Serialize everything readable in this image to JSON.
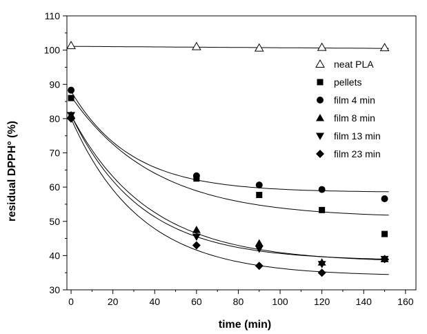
{
  "chart_data": {
    "type": "scatter",
    "title": "",
    "xlabel": "time (min)",
    "ylabel": "residual DPPH° (%)",
    "xlim": [
      -2,
      165
    ],
    "ylim": [
      30,
      110
    ],
    "xticks": [
      0,
      20,
      40,
      60,
      80,
      100,
      120,
      140,
      160
    ],
    "yticks": [
      30,
      40,
      50,
      60,
      70,
      80,
      90,
      100,
      110
    ],
    "grid": false,
    "legend_position": "top-right",
    "series": [
      {
        "name": "neat PLA",
        "marker": "open-triangle",
        "x": [
          0,
          60,
          90,
          120,
          150
        ],
        "y": [
          101.3,
          101.0,
          100.6,
          100.8,
          100.7
        ]
      },
      {
        "name": "pellets",
        "marker": "square",
        "x": [
          0,
          60,
          90,
          120,
          150
        ],
        "y": [
          86.0,
          62.5,
          57.7,
          53.3,
          46.3
        ]
      },
      {
        "name": "film 4 min",
        "marker": "circle",
        "x": [
          0,
          60,
          90,
          120,
          150
        ],
        "y": [
          88.3,
          63.3,
          60.6,
          59.3,
          56.6
        ]
      },
      {
        "name": "film 8 min",
        "marker": "triangle-up",
        "x": [
          0,
          60,
          90,
          120,
          150
        ],
        "y": [
          81.0,
          47.5,
          43.6,
          38.0,
          39.0
        ]
      },
      {
        "name": "film 13 min",
        "marker": "triangle-down",
        "x": [
          0,
          60,
          90,
          120,
          150
        ],
        "y": [
          81.0,
          45.5,
          42.0,
          37.5,
          39.0
        ]
      },
      {
        "name": "film 23 min",
        "marker": "diamond",
        "x": [
          0,
          60,
          90,
          120,
          150
        ],
        "y": [
          80.0,
          43.0,
          37.0,
          35.0,
          39.0
        ]
      }
    ],
    "fit_curves": [
      {
        "name": "neat PLA fit",
        "type": "linear",
        "a": 101.1,
        "slope": -0.004
      },
      {
        "name": "pellets fit",
        "type": "exp",
        "y0": 86.5,
        "yinf": 51.0,
        "k": 0.025
      },
      {
        "name": "film 4 min fit",
        "type": "exp",
        "y0": 88.0,
        "yinf": 58.5,
        "k": 0.035
      },
      {
        "name": "film 8 min fit",
        "type": "exp",
        "y0": 81.0,
        "yinf": 38.0,
        "k": 0.027
      },
      {
        "name": "film 13 min fit",
        "type": "exp",
        "y0": 81.0,
        "yinf": 38.5,
        "k": 0.03
      },
      {
        "name": "film 23 min fit",
        "type": "exp",
        "y0": 80.0,
        "yinf": 34.0,
        "k": 0.03
      }
    ]
  }
}
